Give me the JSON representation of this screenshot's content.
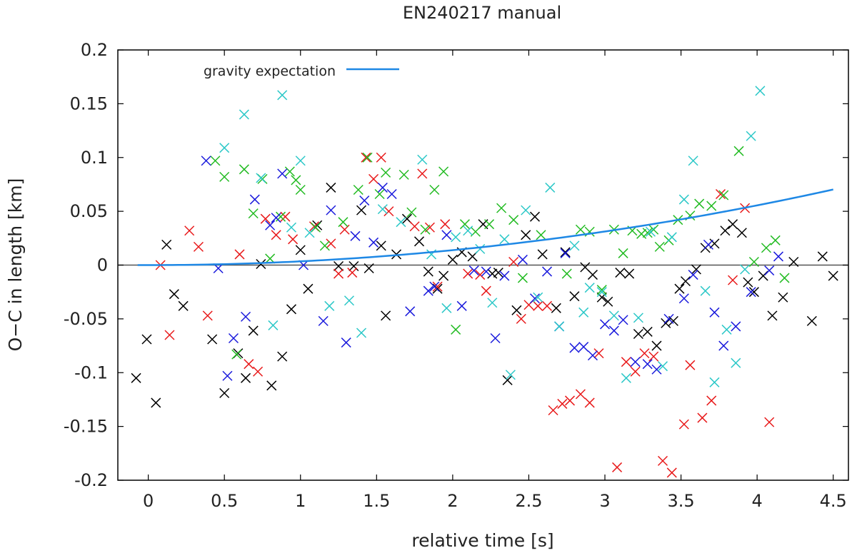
{
  "chart_data": {
    "type": "scatter",
    "title": "EN240217 manual",
    "xlabel": "relative time [s]",
    "ylabel": "O−C in length [km]",
    "xlim": [
      -0.2,
      4.6
    ],
    "ylim": [
      -0.2,
      0.2
    ],
    "xticks": [
      0,
      0.5,
      1,
      1.5,
      2,
      2.5,
      3,
      3.5,
      4,
      4.5
    ],
    "xtick_labels": [
      "0",
      "0.5",
      "1",
      "1.5",
      "2",
      "2.5",
      "3",
      "3.5",
      "4",
      "4.5"
    ],
    "yticks": [
      -0.2,
      -0.15,
      -0.1,
      -0.05,
      0,
      0.05,
      0.1,
      0.15,
      0.2
    ],
    "ytick_labels": [
      "-0.2",
      "-0.15",
      "-0.1",
      "-0.05",
      "0",
      "0.05",
      "0.1",
      "0.15",
      "0.2"
    ],
    "zero_line": true,
    "legend": {
      "position": "top-left",
      "label": "gravity expectation"
    },
    "curve": {
      "name": "gravity expectation",
      "color": "#1e88e5",
      "x_start": -0.07,
      "x_end": 4.5,
      "coefficient": 0.00347,
      "formula": "y = 0.00347 * x^2"
    },
    "series": [
      {
        "name": "black",
        "color": "#000000",
        "points": [
          [
            -0.08,
            -0.105
          ],
          [
            -0.01,
            -0.069
          ],
          [
            0.05,
            -0.128
          ],
          [
            0.12,
            0.019
          ],
          [
            0.17,
            -0.027
          ],
          [
            0.23,
            -0.038
          ],
          [
            0.42,
            -0.069
          ],
          [
            0.5,
            -0.119
          ],
          [
            0.59,
            -0.082
          ],
          [
            0.64,
            -0.105
          ],
          [
            0.69,
            -0.061
          ],
          [
            0.74,
            0.001
          ],
          [
            0.81,
            -0.112
          ],
          [
            0.88,
            -0.085
          ],
          [
            0.94,
            -0.041
          ],
          [
            1.0,
            0.014
          ],
          [
            1.05,
            -0.022
          ],
          [
            1.11,
            0.037
          ],
          [
            1.2,
            0.072
          ],
          [
            1.25,
            -0.001
          ],
          [
            1.35,
            -0.001
          ],
          [
            1.4,
            0.051
          ],
          [
            1.45,
            -0.003
          ],
          [
            1.53,
            0.018
          ],
          [
            1.56,
            -0.047
          ],
          [
            1.63,
            0.01
          ],
          [
            1.7,
            0.043
          ],
          [
            1.78,
            0.022
          ],
          [
            1.84,
            -0.006
          ],
          [
            1.9,
            -0.022
          ],
          [
            1.94,
            -0.01
          ],
          [
            2.0,
            0.005
          ],
          [
            2.06,
            0.012
          ],
          [
            2.13,
            0.008
          ],
          [
            2.2,
            0.038
          ],
          [
            2.26,
            -0.008
          ],
          [
            2.3,
            -0.007
          ],
          [
            2.36,
            -0.107
          ],
          [
            2.42,
            -0.042
          ],
          [
            2.48,
            0.028
          ],
          [
            2.54,
            0.045
          ],
          [
            2.59,
            0.01
          ],
          [
            2.68,
            -0.04
          ],
          [
            2.74,
            0.012
          ],
          [
            2.8,
            -0.029
          ],
          [
            2.87,
            -0.002
          ],
          [
            2.92,
            -0.009
          ],
          [
            2.98,
            -0.03
          ],
          [
            3.02,
            -0.034
          ],
          [
            3.1,
            -0.007
          ],
          [
            3.16,
            -0.008
          ],
          [
            3.22,
            -0.064
          ],
          [
            3.28,
            -0.062
          ],
          [
            3.34,
            -0.075
          ],
          [
            3.4,
            -0.054
          ],
          [
            3.45,
            -0.052
          ],
          [
            3.49,
            -0.022
          ],
          [
            3.53,
            -0.015
          ],
          [
            3.6,
            -0.004
          ],
          [
            3.66,
            0.016
          ],
          [
            3.72,
            0.02
          ],
          [
            3.79,
            0.032
          ],
          [
            3.84,
            0.038
          ],
          [
            3.9,
            0.03
          ],
          [
            3.94,
            -0.016
          ],
          [
            3.98,
            -0.025
          ],
          [
            4.04,
            -0.01
          ],
          [
            4.1,
            -0.047
          ],
          [
            4.17,
            -0.03
          ],
          [
            4.24,
            0.003
          ],
          [
            4.36,
            -0.052
          ],
          [
            4.43,
            0.008
          ],
          [
            4.5,
            -0.01
          ]
        ]
      },
      {
        "name": "red",
        "color": "#e8191a",
        "points": [
          [
            0.08,
            0.0
          ],
          [
            0.14,
            -0.065
          ],
          [
            0.27,
            0.032
          ],
          [
            0.33,
            0.017
          ],
          [
            0.39,
            -0.047
          ],
          [
            0.6,
            0.01
          ],
          [
            0.66,
            -0.092
          ],
          [
            0.72,
            -0.099
          ],
          [
            0.77,
            0.043
          ],
          [
            0.84,
            0.028
          ],
          [
            0.9,
            0.045
          ],
          [
            0.95,
            0.024
          ],
          [
            1.09,
            0.036
          ],
          [
            1.2,
            0.02
          ],
          [
            1.25,
            -0.008
          ],
          [
            1.29,
            0.033
          ],
          [
            1.34,
            -0.007
          ],
          [
            1.43,
            0.1
          ],
          [
            1.48,
            0.08
          ],
          [
            1.53,
            0.1
          ],
          [
            1.58,
            0.05
          ],
          [
            1.75,
            0.036
          ],
          [
            1.8,
            0.085
          ],
          [
            1.85,
            0.035
          ],
          [
            1.9,
            -0.02
          ],
          [
            1.95,
            0.038
          ],
          [
            2.1,
            -0.008
          ],
          [
            2.18,
            -0.009
          ],
          [
            2.22,
            -0.024
          ],
          [
            2.4,
            0.003
          ],
          [
            2.45,
            -0.05
          ],
          [
            2.5,
            -0.037
          ],
          [
            2.56,
            -0.038
          ],
          [
            2.62,
            -0.038
          ],
          [
            2.66,
            -0.135
          ],
          [
            2.72,
            -0.129
          ],
          [
            2.77,
            -0.126
          ],
          [
            2.84,
            -0.12
          ],
          [
            2.9,
            -0.128
          ],
          [
            2.96,
            -0.082
          ],
          [
            3.08,
            -0.188
          ],
          [
            3.14,
            -0.09
          ],
          [
            3.2,
            -0.099
          ],
          [
            3.26,
            -0.082
          ],
          [
            3.32,
            -0.085
          ],
          [
            3.38,
            -0.182
          ],
          [
            3.44,
            -0.193
          ],
          [
            3.52,
            -0.148
          ],
          [
            3.56,
            -0.093
          ],
          [
            3.64,
            -0.142
          ],
          [
            3.7,
            -0.126
          ],
          [
            3.76,
            0.066
          ],
          [
            3.84,
            -0.014
          ],
          [
            3.92,
            0.053
          ],
          [
            4.08,
            -0.146
          ]
        ]
      },
      {
        "name": "green",
        "color": "#22bb22",
        "points": [
          [
            0.44,
            0.097
          ],
          [
            0.5,
            0.082
          ],
          [
            0.58,
            -0.083
          ],
          [
            0.63,
            0.089
          ],
          [
            0.69,
            0.048
          ],
          [
            0.75,
            0.08
          ],
          [
            0.8,
            0.006
          ],
          [
            0.87,
            0.045
          ],
          [
            0.93,
            0.087
          ],
          [
            0.97,
            0.079
          ],
          [
            1.0,
            0.07
          ],
          [
            1.1,
            0.035
          ],
          [
            1.16,
            0.018
          ],
          [
            1.28,
            0.04
          ],
          [
            1.38,
            0.07
          ],
          [
            1.44,
            0.1
          ],
          [
            1.52,
            0.066
          ],
          [
            1.56,
            0.086
          ],
          [
            1.68,
            0.084
          ],
          [
            1.73,
            0.049
          ],
          [
            1.82,
            0.033
          ],
          [
            1.88,
            0.07
          ],
          [
            1.94,
            0.087
          ],
          [
            2.02,
            -0.06
          ],
          [
            2.08,
            0.038
          ],
          [
            2.15,
            0.031
          ],
          [
            2.24,
            0.038
          ],
          [
            2.32,
            0.053
          ],
          [
            2.4,
            0.042
          ],
          [
            2.46,
            -0.012
          ],
          [
            2.58,
            0.028
          ],
          [
            2.75,
            -0.008
          ],
          [
            2.84,
            0.033
          ],
          [
            2.9,
            0.031
          ],
          [
            2.98,
            -0.023
          ],
          [
            3.06,
            0.033
          ],
          [
            3.12,
            0.011
          ],
          [
            3.18,
            0.032
          ],
          [
            3.24,
            0.029
          ],
          [
            3.28,
            0.03
          ],
          [
            3.32,
            0.033
          ],
          [
            3.36,
            0.017
          ],
          [
            3.42,
            0.023
          ],
          [
            3.48,
            0.042
          ],
          [
            3.56,
            0.046
          ],
          [
            3.62,
            0.057
          ],
          [
            3.7,
            0.055
          ],
          [
            3.78,
            0.065
          ],
          [
            3.88,
            0.106
          ],
          [
            3.98,
            0.003
          ],
          [
            4.06,
            0.016
          ],
          [
            4.12,
            0.023
          ],
          [
            4.18,
            -0.012
          ]
        ]
      },
      {
        "name": "blue",
        "color": "#1a1adc",
        "points": [
          [
            0.38,
            0.097
          ],
          [
            0.46,
            -0.003
          ],
          [
            0.52,
            -0.103
          ],
          [
            0.56,
            -0.068
          ],
          [
            0.64,
            -0.048
          ],
          [
            0.7,
            0.061
          ],
          [
            0.8,
            0.037
          ],
          [
            0.84,
            0.044
          ],
          [
            0.88,
            0.085
          ],
          [
            1.02,
            0.0
          ],
          [
            1.15,
            -0.052
          ],
          [
            1.2,
            0.051
          ],
          [
            1.3,
            -0.072
          ],
          [
            1.36,
            0.027
          ],
          [
            1.42,
            0.06
          ],
          [
            1.48,
            0.021
          ],
          [
            1.54,
            0.072
          ],
          [
            1.6,
            0.066
          ],
          [
            1.72,
            -0.043
          ],
          [
            1.84,
            -0.024
          ],
          [
            1.88,
            -0.02
          ],
          [
            1.96,
            0.028
          ],
          [
            2.06,
            -0.038
          ],
          [
            2.14,
            -0.005
          ],
          [
            2.22,
            -0.006
          ],
          [
            2.28,
            -0.068
          ],
          [
            2.34,
            -0.01
          ],
          [
            2.46,
            0.005
          ],
          [
            2.54,
            -0.031
          ],
          [
            2.62,
            -0.006
          ],
          [
            2.7,
            -0.057
          ],
          [
            2.74,
            0.011
          ],
          [
            2.8,
            -0.077
          ],
          [
            2.86,
            -0.076
          ],
          [
            2.92,
            -0.084
          ],
          [
            3.0,
            -0.055
          ],
          [
            3.06,
            -0.061
          ],
          [
            3.12,
            -0.051
          ],
          [
            3.2,
            -0.09
          ],
          [
            3.28,
            -0.092
          ],
          [
            3.34,
            -0.097
          ],
          [
            3.42,
            -0.05
          ],
          [
            3.52,
            -0.031
          ],
          [
            3.58,
            -0.009
          ],
          [
            3.68,
            0.019
          ],
          [
            3.72,
            -0.044
          ],
          [
            3.78,
            -0.075
          ],
          [
            3.86,
            -0.057
          ],
          [
            3.96,
            -0.025
          ],
          [
            4.08,
            -0.005
          ],
          [
            4.14,
            0.008
          ]
        ]
      },
      {
        "name": "cyan",
        "color": "#2cc8c8",
        "points": [
          [
            0.5,
            0.109
          ],
          [
            0.63,
            0.14
          ],
          [
            0.74,
            0.081
          ],
          [
            0.82,
            -0.056
          ],
          [
            0.88,
            0.158
          ],
          [
            0.94,
            0.035
          ],
          [
            1.0,
            0.097
          ],
          [
            1.06,
            0.03
          ],
          [
            1.19,
            -0.038
          ],
          [
            1.32,
            -0.033
          ],
          [
            1.4,
            -0.063
          ],
          [
            1.54,
            0.052
          ],
          [
            1.66,
            0.04
          ],
          [
            1.8,
            0.098
          ],
          [
            1.86,
            0.01
          ],
          [
            1.96,
            -0.04
          ],
          [
            2.02,
            0.026
          ],
          [
            2.1,
            0.032
          ],
          [
            2.18,
            0.015
          ],
          [
            2.26,
            -0.035
          ],
          [
            2.34,
            0.024
          ],
          [
            2.38,
            -0.102
          ],
          [
            2.48,
            0.051
          ],
          [
            2.56,
            -0.03
          ],
          [
            2.64,
            0.072
          ],
          [
            2.7,
            -0.057
          ],
          [
            2.8,
            0.018
          ],
          [
            2.86,
            -0.044
          ],
          [
            2.9,
            -0.021
          ],
          [
            2.98,
            -0.025
          ],
          [
            3.06,
            -0.047
          ],
          [
            3.14,
            -0.105
          ],
          [
            3.22,
            -0.049
          ],
          [
            3.3,
            0.031
          ],
          [
            3.38,
            -0.094
          ],
          [
            3.44,
            0.026
          ],
          [
            3.52,
            0.061
          ],
          [
            3.58,
            0.097
          ],
          [
            3.66,
            -0.024
          ],
          [
            3.72,
            -0.109
          ],
          [
            3.8,
            -0.06
          ],
          [
            3.86,
            -0.091
          ],
          [
            3.92,
            -0.004
          ],
          [
            3.96,
            0.12
          ],
          [
            4.02,
            0.162
          ]
        ]
      }
    ]
  }
}
